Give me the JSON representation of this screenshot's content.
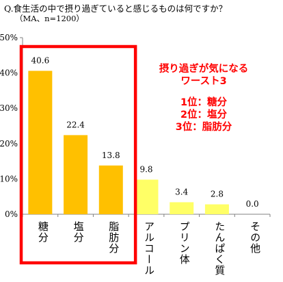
{
  "question": "Q.食生活の中で摂り過ぎていると感じるものは何ですか？",
  "sample": "（MA、n=1200）",
  "callout": {
    "title_line1": "摂り過ぎが気になる",
    "title_line2": "ワースト3",
    "rank1": "1位：糖分",
    "rank2": "2位：塩分",
    "rank3": "3位：脂肪分"
  },
  "colors": {
    "top3_bar": "#FFC000",
    "other_bar": "#FFFF66",
    "highlight_frame": "#FF0000",
    "callout_text": "#FF0000"
  },
  "chart_data": {
    "type": "bar",
    "categories": [
      "糖分",
      "塩分",
      "脂肪分",
      "アルコール",
      "プリン体",
      "たんぱく質",
      "その他"
    ],
    "values": [
      40.6,
      22.4,
      13.8,
      9.8,
      3.4,
      2.8,
      0.0
    ],
    "value_labels": [
      "40.6",
      "22.4",
      "13.8",
      "9.8",
      "3.4",
      "2.8",
      "0.0"
    ],
    "highlighted": [
      true,
      true,
      true,
      false,
      false,
      false,
      false
    ],
    "ylim": [
      0,
      50
    ],
    "yticks": [
      "0%",
      "10%",
      "20%",
      "30%",
      "40%",
      "50%"
    ],
    "grid": false,
    "xlabel": "",
    "ylabel": ""
  }
}
